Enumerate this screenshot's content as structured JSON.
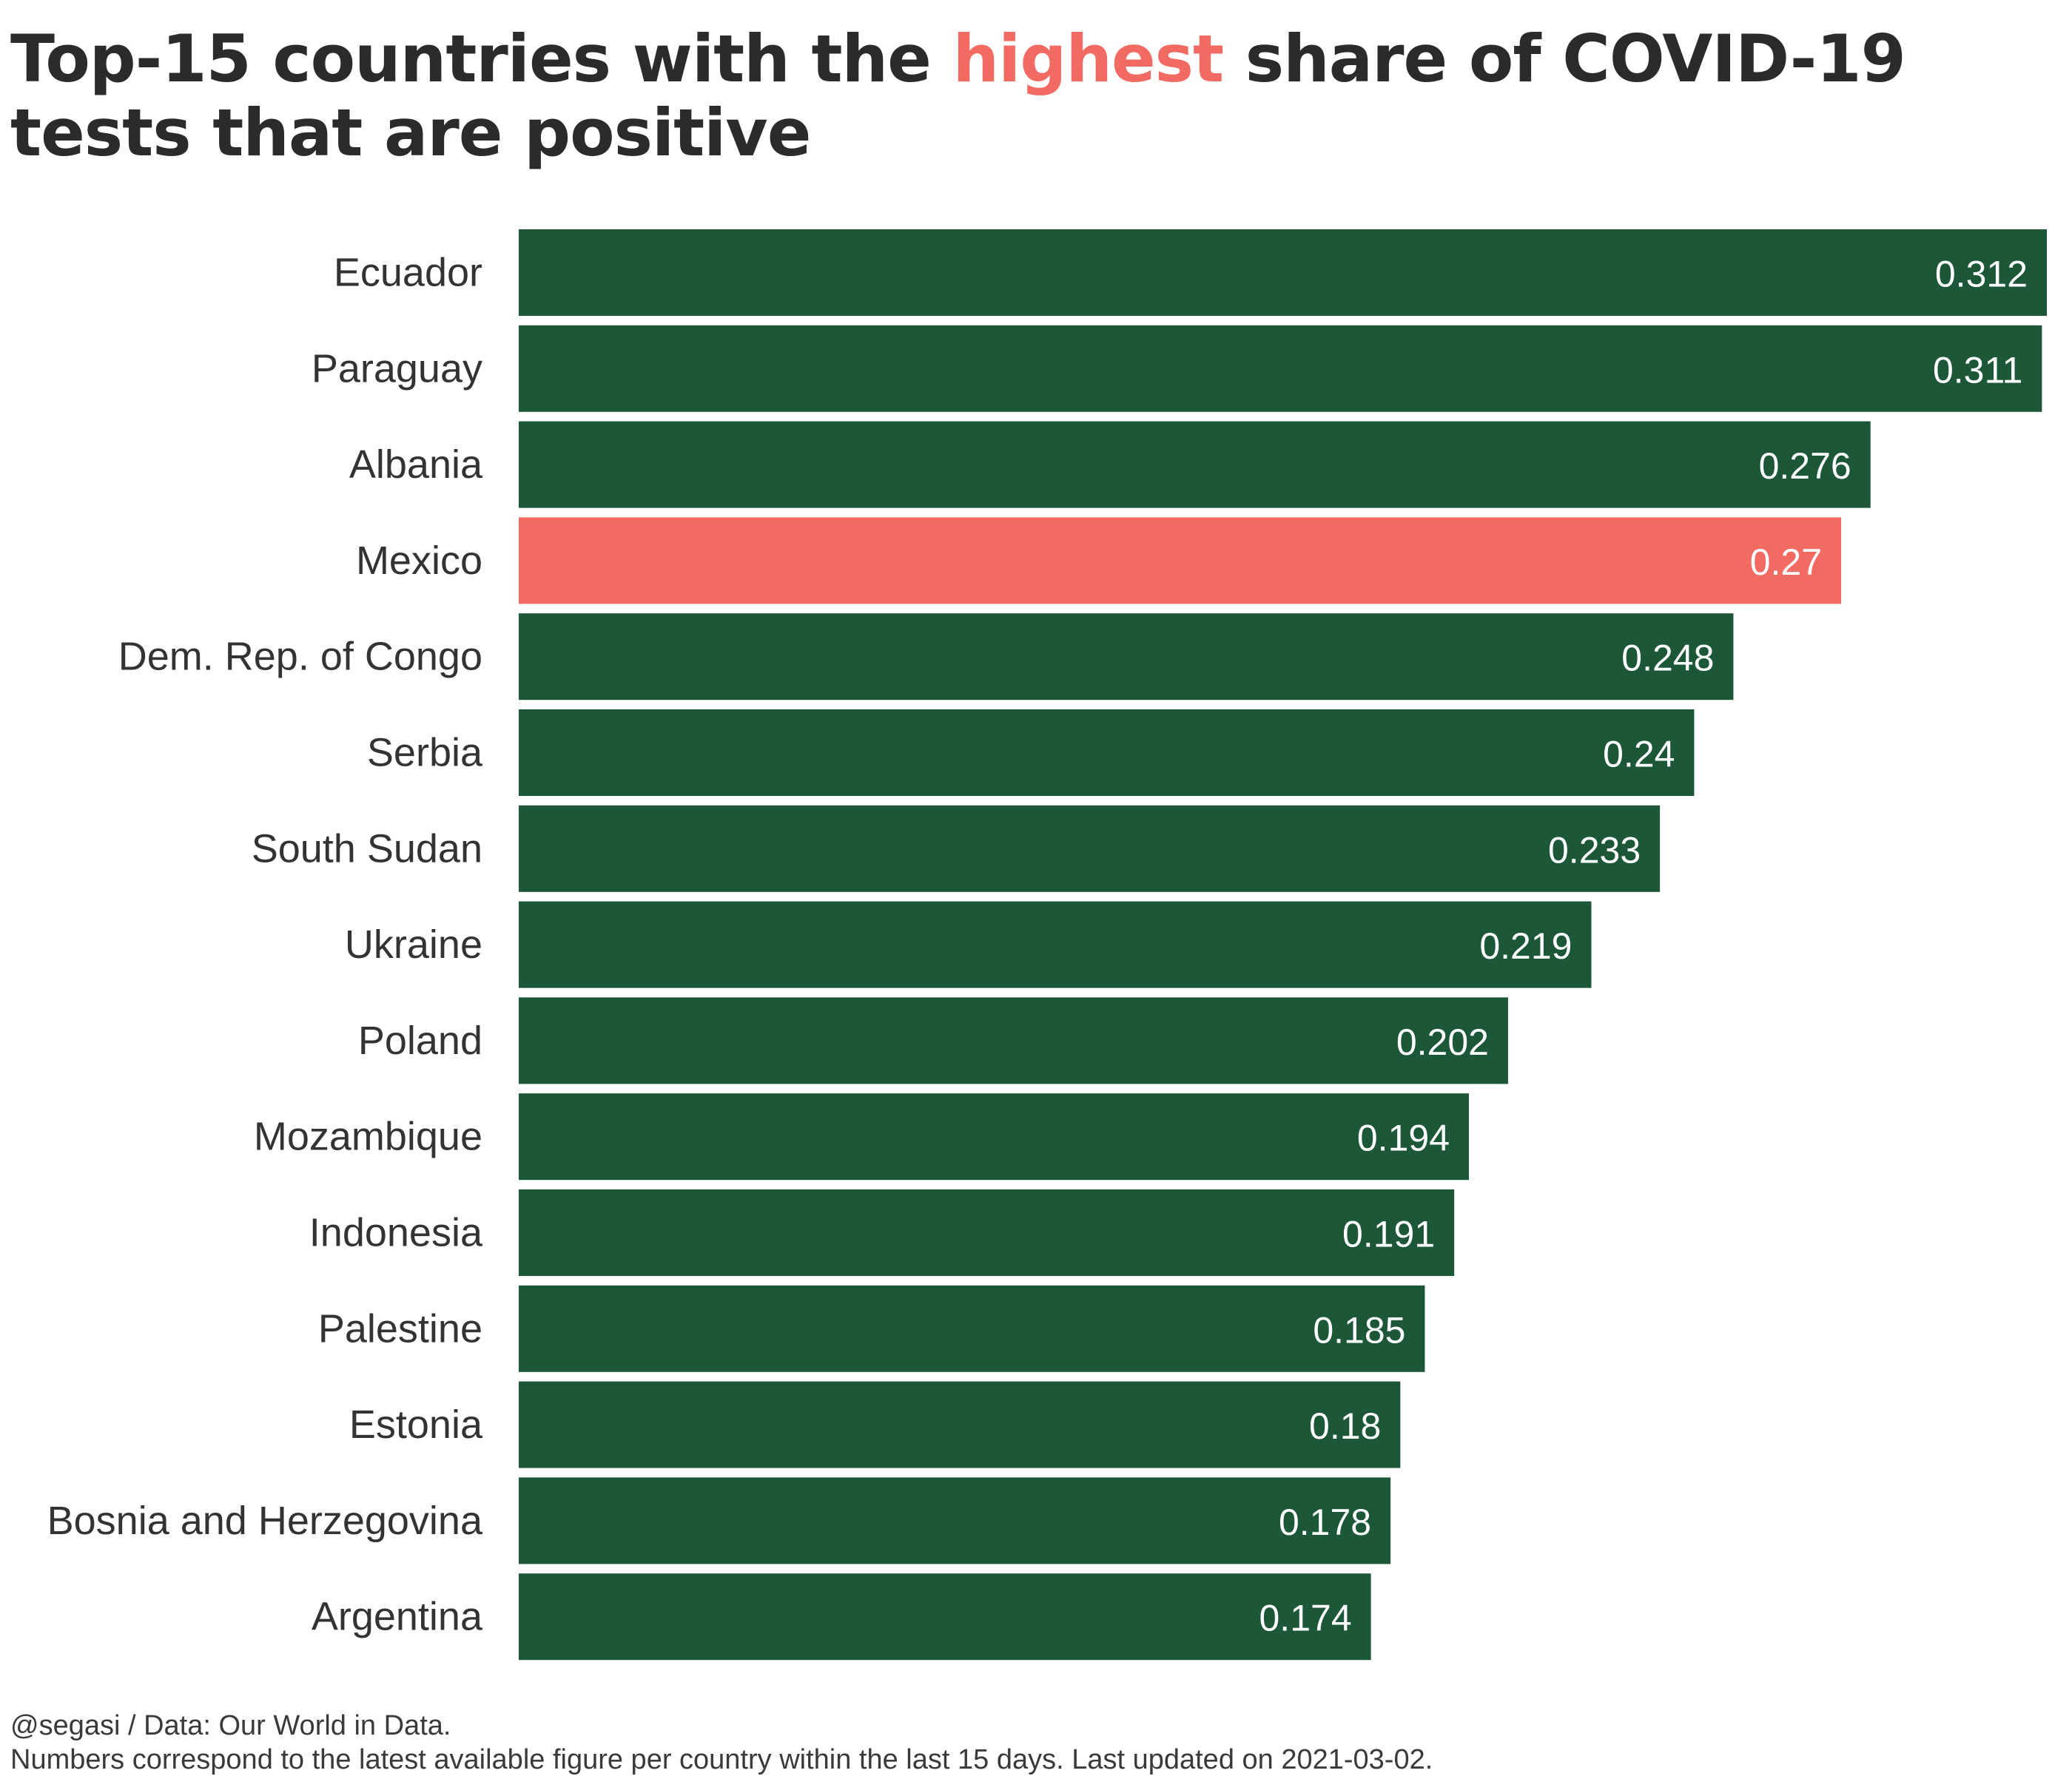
{
  "title": {
    "before": "Top-15 countries with the ",
    "highlight": "highest",
    "after": " share of COVID-19 tests that are positive"
  },
  "colors": {
    "bar": "#1c5737",
    "highlight_bar": "#f26b63",
    "value_label": "#ffffff",
    "category_label": "#333333",
    "title": "#2b2b2b",
    "title_highlight": "#f26b63"
  },
  "chart_data": {
    "type": "bar",
    "orientation": "horizontal",
    "title": "Top-15 countries with the highest share of COVID-19 tests that are positive",
    "xlabel": "",
    "ylabel": "",
    "grid": false,
    "legend": "none",
    "xlim": [
      0,
      0.312
    ],
    "highlight_category": "Mexico",
    "categories": [
      "Ecuador",
      "Paraguay",
      "Albania",
      "Mexico",
      "Dem. Rep. of Congo",
      "Serbia",
      "South Sudan",
      "Ukraine",
      "Poland",
      "Mozambique",
      "Indonesia",
      "Palestine",
      "Estonia",
      "Bosnia and Herzegovina",
      "Argentina"
    ],
    "values": [
      0.312,
      0.311,
      0.276,
      0.27,
      0.248,
      0.24,
      0.233,
      0.219,
      0.202,
      0.194,
      0.191,
      0.185,
      0.18,
      0.178,
      0.174
    ],
    "value_labels": [
      "0.312",
      "0.311",
      "0.276",
      "0.27",
      "0.248",
      "0.24",
      "0.233",
      "0.219",
      "0.202",
      "0.194",
      "0.191",
      "0.185",
      "0.18",
      "0.178",
      "0.174"
    ]
  },
  "footer": {
    "source": "@segasi / Data: Our World in Data.",
    "note": "Numbers correspond to the latest available figure per country within the last 15 days. Last updated on 2021-03-02."
  }
}
